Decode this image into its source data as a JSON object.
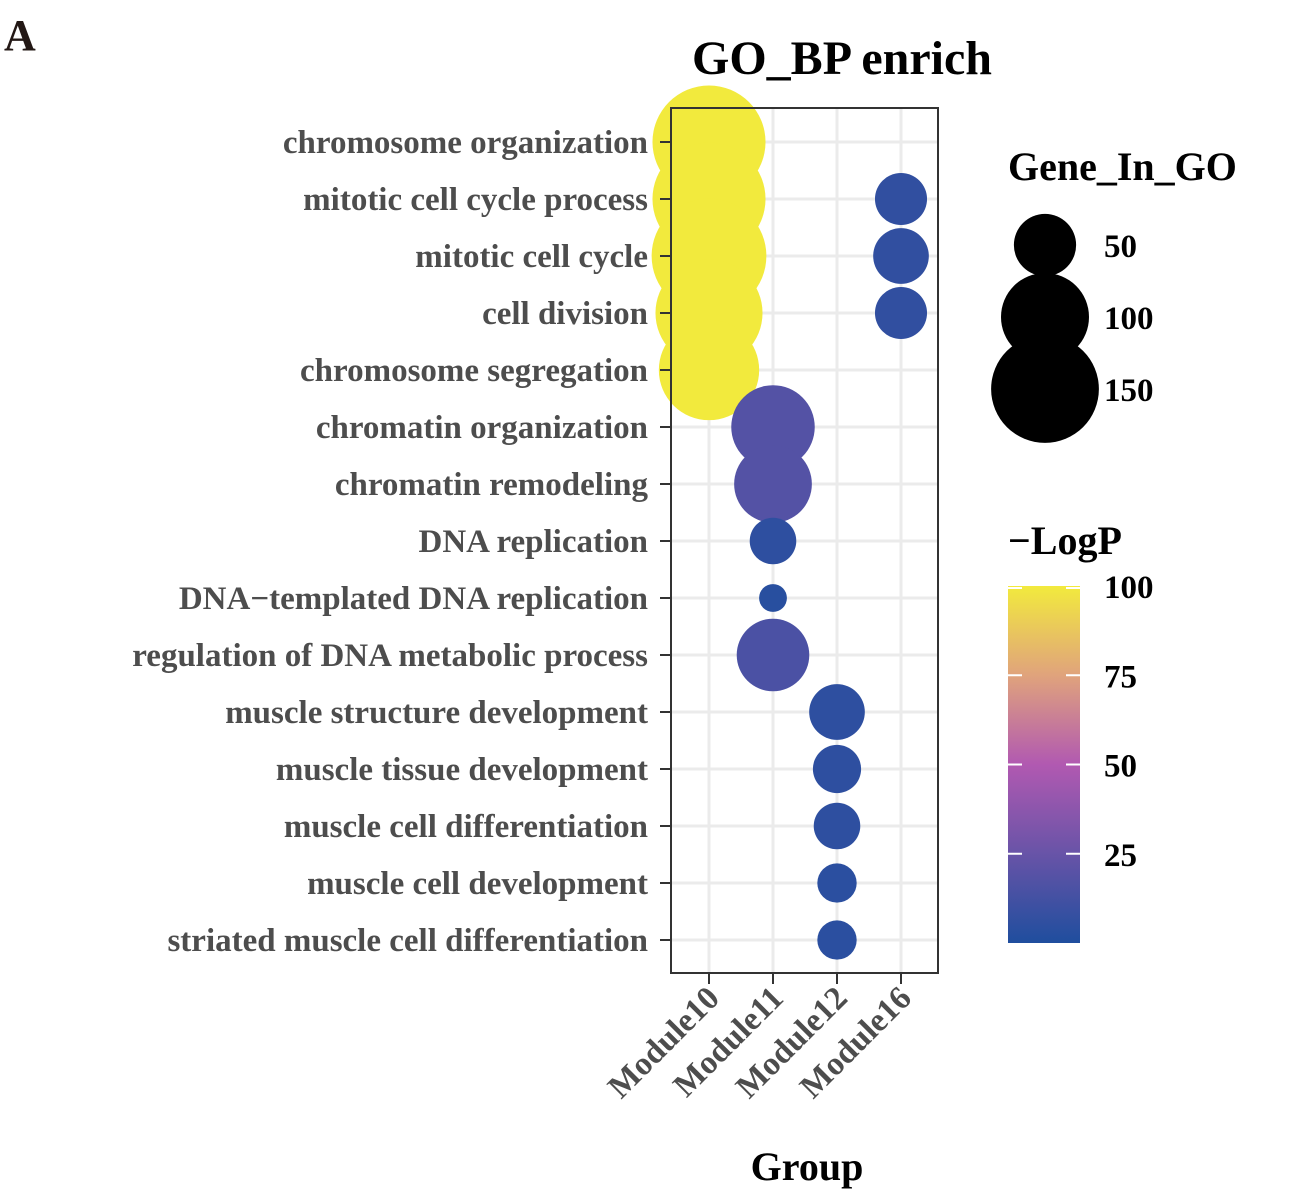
{
  "panel_label": "A",
  "chart_data": {
    "type": "scatter",
    "title": "GO_BP enrich",
    "xlabel": "Group",
    "ylabel": "",
    "x_categories": [
      "Module10",
      "Module11",
      "Module12",
      "Module16"
    ],
    "y_categories": [
      "chromosome organization",
      "mitotic cell cycle process",
      "mitotic cell cycle",
      "cell division",
      "chromosome segregation",
      "chromatin organization",
      "chromatin remodeling",
      "DNA replication",
      "DNA−templated DNA replication",
      "regulation of DNA metabolic process",
      "muscle structure development",
      "muscle tissue development",
      "muscle cell differentiation",
      "muscle cell development",
      "striated muscle cell differentiation"
    ],
    "points": [
      {
        "x": "Module10",
        "y": "chromosome organization",
        "gene_in_go": 165,
        "neg_log_p": 100
      },
      {
        "x": "Module10",
        "y": "mitotic cell cycle process",
        "gene_in_go": 165,
        "neg_log_p": 100
      },
      {
        "x": "Module10",
        "y": "mitotic cell cycle",
        "gene_in_go": 170,
        "neg_log_p": 100
      },
      {
        "x": "Module10",
        "y": "cell division",
        "gene_in_go": 148,
        "neg_log_p": 100
      },
      {
        "x": "Module10",
        "y": "chromosome segregation",
        "gene_in_go": 130,
        "neg_log_p": 100
      },
      {
        "x": "Module11",
        "y": "chromatin organization",
        "gene_in_go": 90,
        "neg_log_p": 18
      },
      {
        "x": "Module11",
        "y": "chromatin remodeling",
        "gene_in_go": 78,
        "neg_log_p": 18
      },
      {
        "x": "Module11",
        "y": "DNA replication",
        "gene_in_go": 28,
        "neg_log_p": 5
      },
      {
        "x": "Module11",
        "y": "DNA−templated DNA replication",
        "gene_in_go": 10,
        "neg_log_p": 3
      },
      {
        "x": "Module11",
        "y": "regulation of DNA metabolic process",
        "gene_in_go": 68,
        "neg_log_p": 15
      },
      {
        "x": "Module12",
        "y": "muscle structure development",
        "gene_in_go": 40,
        "neg_log_p": 5
      },
      {
        "x": "Module12",
        "y": "muscle tissue development",
        "gene_in_go": 30,
        "neg_log_p": 5
      },
      {
        "x": "Module12",
        "y": "muscle cell differentiation",
        "gene_in_go": 28,
        "neg_log_p": 5
      },
      {
        "x": "Module12",
        "y": "muscle cell development",
        "gene_in_go": 20,
        "neg_log_p": 4
      },
      {
        "x": "Module12",
        "y": "striated muscle cell differentiation",
        "gene_in_go": 20,
        "neg_log_p": 4
      },
      {
        "x": "Module16",
        "y": "mitotic cell cycle process",
        "gene_in_go": 35,
        "neg_log_p": 6
      },
      {
        "x": "Module16",
        "y": "mitotic cell cycle",
        "gene_in_go": 40,
        "neg_log_p": 6
      },
      {
        "x": "Module16",
        "y": "cell division",
        "gene_in_go": 35,
        "neg_log_p": 6
      }
    ],
    "size_legend": {
      "title": "Gene_In_GO",
      "breaks": [
        50,
        100,
        150
      ],
      "labels": [
        "50",
        "100",
        "150"
      ]
    },
    "color_legend": {
      "title": "−LogP",
      "range": [
        0,
        100
      ],
      "breaks": [
        25,
        50,
        75,
        100
      ],
      "labels": [
        "25",
        "50",
        "75",
        "100"
      ],
      "low_color": "#1f4e9e",
      "mid_color": "#b159b1",
      "mid2_color": "#e0a37c",
      "high_color": "#f2ea3d"
    },
    "grid": true,
    "legend_position": "right",
    "panel_border_color": "#333333",
    "grid_color": "#ebebeb"
  }
}
